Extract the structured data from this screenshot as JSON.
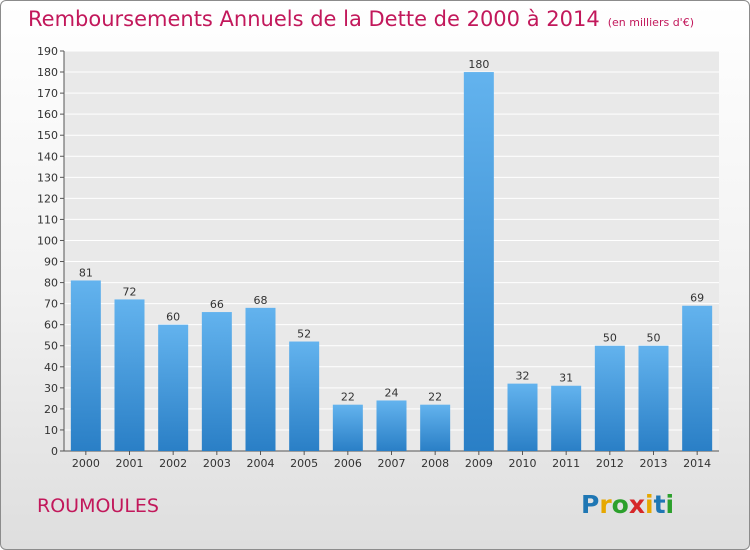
{
  "header": {
    "title": "Remboursements Annuels de la Dette de 2000 à 2014",
    "unit": "(en milliers d'€)"
  },
  "footer": {
    "commune": "ROUMOULES",
    "logo_letters": [
      "P",
      "r",
      "o",
      "x",
      "i",
      "t",
      "i"
    ]
  },
  "colors": {
    "title": "#c2185b",
    "bar_top": "#63b3ee",
    "bar_bottom": "#2a7fc6",
    "logo": [
      "#1f77b4",
      "#e6a800",
      "#2ca02c",
      "#d62728",
      "#e6a800",
      "#1f77b4",
      "#2ca02c"
    ]
  },
  "chart_data": {
    "type": "bar",
    "title": "Remboursements Annuels de la Dette de 2000 à 2014",
    "categories": [
      "2000",
      "2001",
      "2002",
      "2003",
      "2004",
      "2005",
      "2006",
      "2007",
      "2008",
      "2009",
      "2010",
      "2011",
      "2012",
      "2013",
      "2014"
    ],
    "values": [
      81,
      72,
      60,
      66,
      68,
      52,
      22,
      24,
      22,
      180,
      32,
      31,
      50,
      50,
      69
    ],
    "ylim": [
      0,
      190
    ],
    "ytick_step": 10,
    "grid": true,
    "xlabel": "",
    "ylabel": ""
  }
}
